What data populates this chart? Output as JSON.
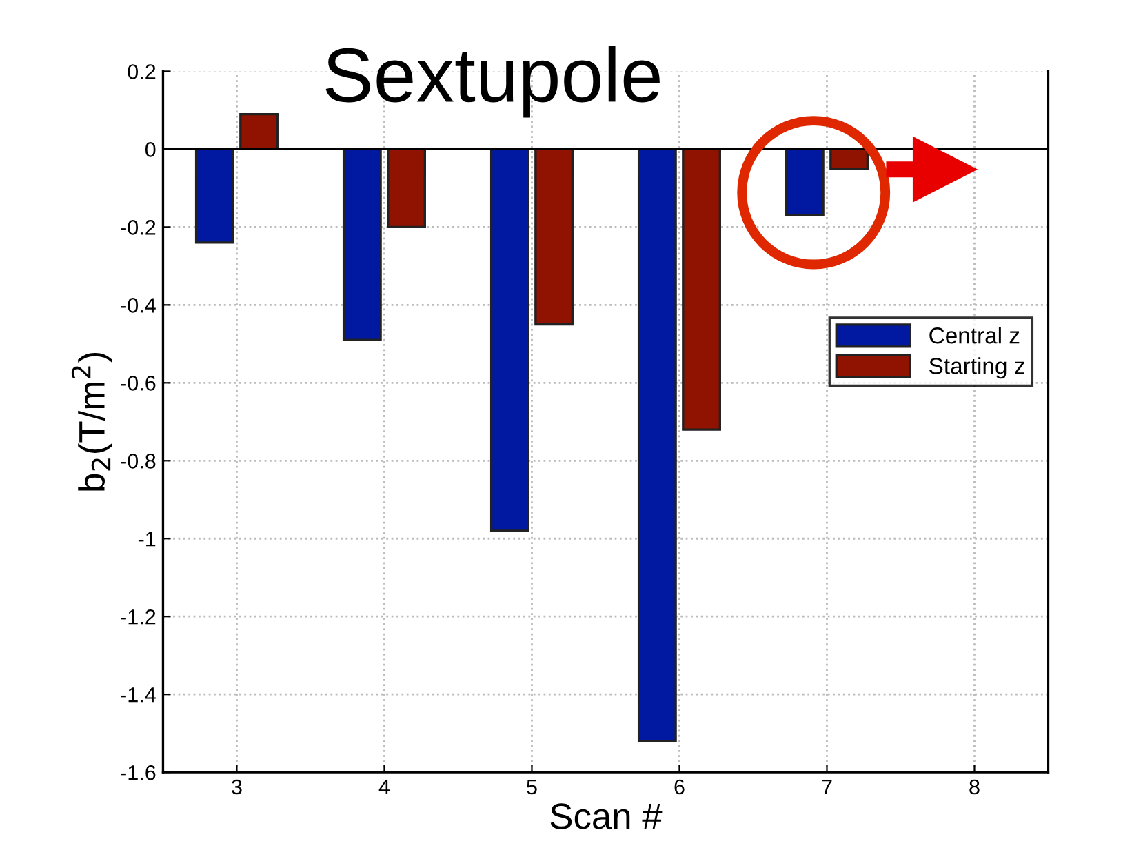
{
  "chart_data": {
    "type": "bar",
    "title": "Sextupole",
    "xlabel": "Scan #",
    "ylabel": "b$_{2}$(T/m$^{2}$)",
    "x": [
      3,
      4,
      5,
      6,
      7
    ],
    "series": [
      {
        "name": "Central z",
        "color": "#0019a0",
        "values": [
          -0.24,
          -0.49,
          -0.98,
          -1.52,
          -0.17
        ]
      },
      {
        "name": "Starting z",
        "color": "#8f1300",
        "values": [
          0.09,
          -0.2,
          -0.45,
          -0.72,
          -0.05
        ]
      }
    ],
    "xlim": [
      2.5,
      8.5
    ],
    "xticks": [
      3,
      4,
      5,
      6,
      7,
      8
    ],
    "ylim": [
      -1.6,
      0.2
    ],
    "yticks": [
      0.2,
      0,
      -0.2,
      -0.4,
      -0.6,
      -0.8,
      -1,
      -1.2,
      -1.4,
      -1.6
    ],
    "ref_lines": [
      {
        "axis": "y",
        "value": 0,
        "color": "#000000"
      }
    ],
    "grid": true,
    "legend": "right"
  }
}
